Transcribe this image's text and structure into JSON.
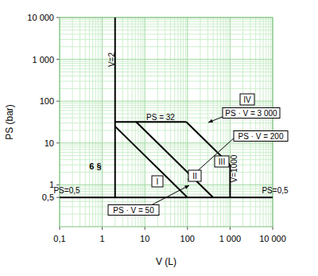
{
  "chart_data": {
    "type": "line",
    "x_label": "V (L)",
    "y_label": "PS (bar)",
    "log": true,
    "grid": true,
    "xlim": [
      0.1,
      10000
    ],
    "ylim": [
      0.1,
      10000
    ],
    "xticks": [
      {
        "value": 0.1,
        "label": "0,1"
      },
      1,
      10,
      100,
      {
        "value": 1000,
        "label": "1 000"
      },
      {
        "value": 10000,
        "label": "10 000"
      }
    ],
    "yticks": [
      {
        "value": 0.5,
        "label": "0,5"
      },
      1,
      10,
      100,
      {
        "value": 1000,
        "label": "1 000"
      },
      {
        "value": 10000,
        "label": "10 000"
      }
    ],
    "series": [
      {
        "name": "V=2",
        "color": "#000000",
        "line_style": "solid",
        "x": [
          2,
          2
        ],
        "values": [
          0.5,
          10000
        ]
      },
      {
        "name": "PS=0,5",
        "color": "#000000",
        "line_style": "solid",
        "x": [
          0.1,
          10000
        ],
        "values": [
          0.5,
          0.5
        ]
      },
      {
        "name": "PS = 32",
        "color": "#000000",
        "line_style": "solid",
        "x": [
          2,
          93.75
        ],
        "values": [
          32,
          32
        ]
      },
      {
        "name": "PS · V = 50",
        "color": "#000000",
        "line_style": "solid",
        "x": [
          2,
          100
        ],
        "values": [
          25,
          0.5
        ]
      },
      {
        "name": "PS · V = 200",
        "color": "#000000",
        "line_style": "solid",
        "x": [
          6.25,
          400
        ],
        "values": [
          32,
          0.5
        ]
      },
      {
        "name": "PS · V = 3 000",
        "color": "#000000",
        "line_style": "solid",
        "x": [
          93.75,
          1000
        ],
        "values": [
          32,
          3
        ]
      },
      {
        "name": "V=1000",
        "color": "#000000",
        "line_style": "solid",
        "x": [
          1000,
          1000
        ],
        "values": [
          3,
          0.5
        ]
      }
    ],
    "annotations": [
      "6 §",
      "PS=0,5",
      "I",
      "II",
      "III",
      "IV"
    ]
  }
}
